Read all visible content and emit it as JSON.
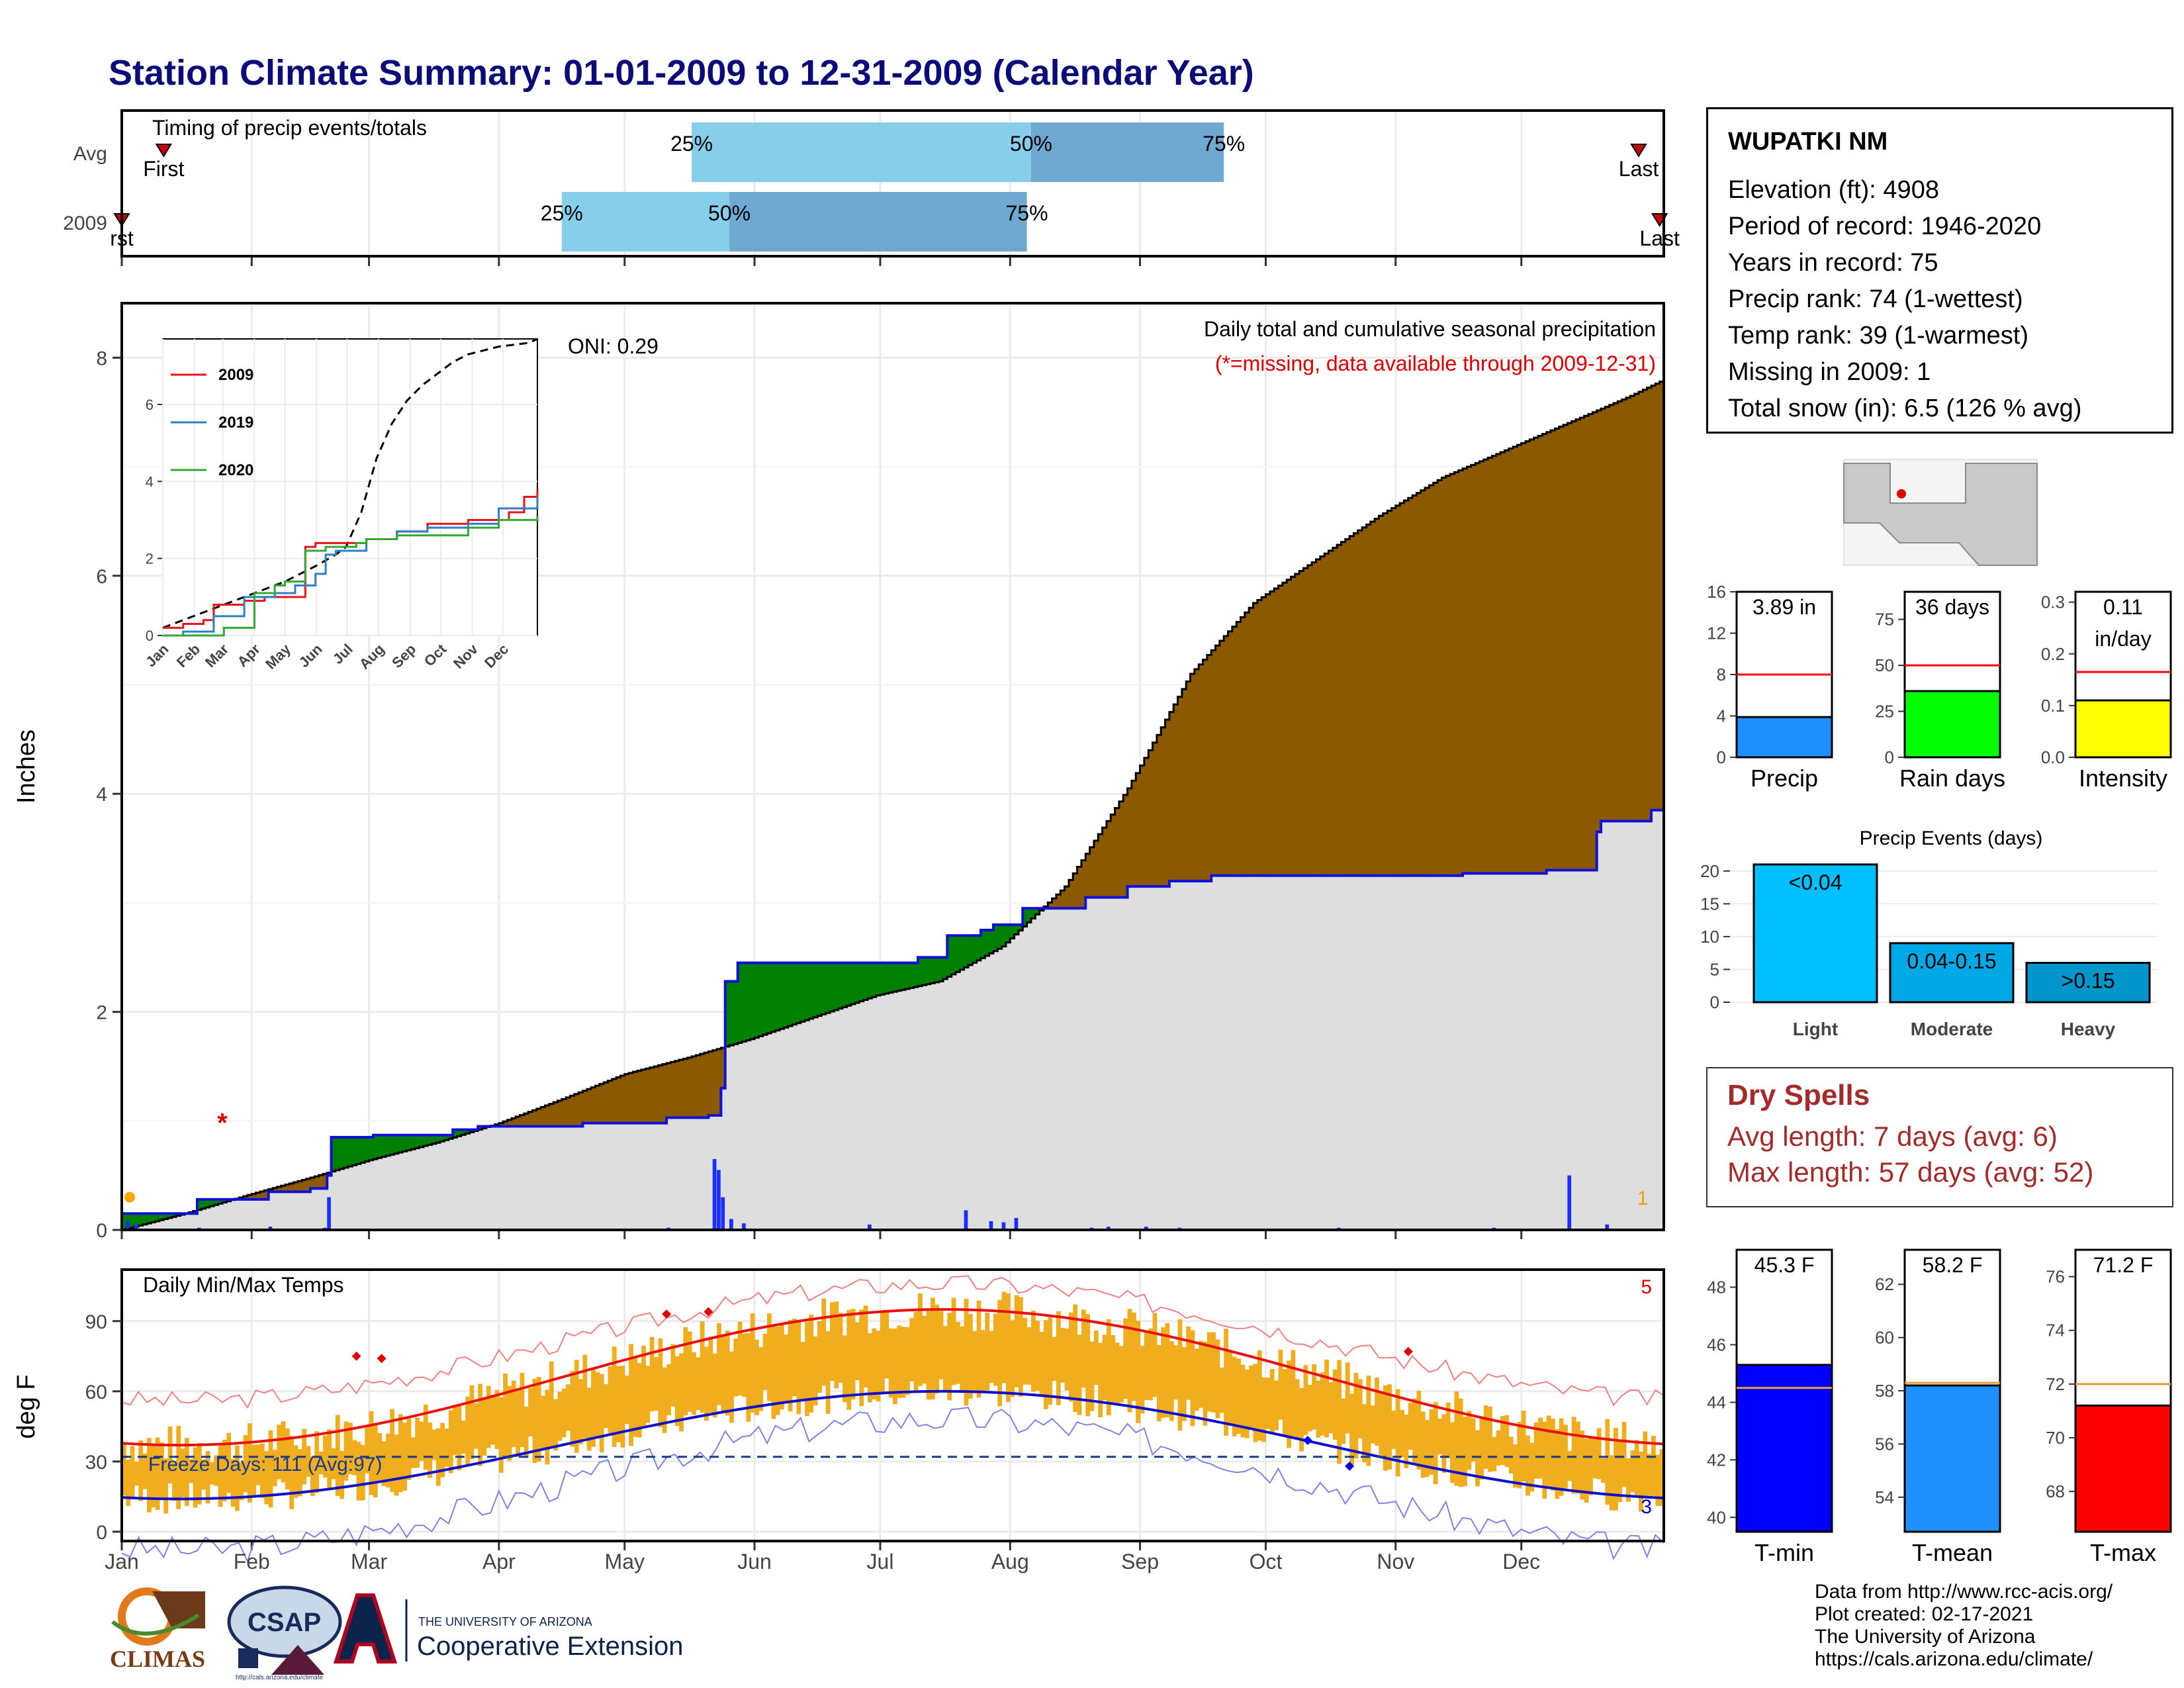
{
  "title": "Station Climate Summary: 01-01-2009 to 12-31-2009 (Calendar Year)",
  "months": [
    "Jan",
    "Feb",
    "Mar",
    "Apr",
    "May",
    "Jun",
    "Jul",
    "Aug",
    "Sep",
    "Oct",
    "Nov",
    "Dec"
  ],
  "timing": {
    "label": "Timing of precip events/totals",
    "rows": [
      {
        "name": "Avg",
        "first_day": 10,
        "p25": 136,
        "p50": 217,
        "p75": 263,
        "last_day": 362,
        "first_label": "First",
        "last_label": "Last",
        "p25_label": "25%",
        "p50_label": "50%",
        "p75_label": "75%"
      },
      {
        "name": "2009",
        "first_day": 0,
        "p25": 105,
        "p50": 145,
        "p75": 216,
        "last_day": 367,
        "first_label": "rst",
        "last_label": "Last",
        "p25_label": "25%",
        "p50_label": "50%",
        "p75_label": "75%"
      }
    ],
    "colors": {
      "light": "#87ceeb",
      "dark": "#6fa8d0",
      "marker": "#cc0000"
    }
  },
  "precip": {
    "title": "Daily total and cumulative seasonal precipitation",
    "subtitle": "(*=missing, data available through 2009-12-31)",
    "ylabel": "Inches",
    "ylim": [
      0,
      8.5
    ],
    "yticks": [
      0,
      2,
      4,
      6,
      8
    ],
    "oni_label": "ONI: 0.29",
    "count_label": "1",
    "avg_cumulative": {
      "days": [
        0,
        15,
        30,
        45,
        60,
        75,
        90,
        105,
        120,
        135,
        150,
        165,
        180,
        195,
        210,
        225,
        240,
        255,
        270,
        285,
        300,
        315,
        330,
        345,
        360,
        368
      ],
      "values": [
        0.0,
        0.15,
        0.32,
        0.48,
        0.65,
        0.8,
        0.98,
        1.2,
        1.43,
        1.58,
        1.75,
        1.95,
        2.15,
        2.28,
        2.6,
        3.15,
        4.05,
        5.1,
        5.75,
        6.15,
        6.55,
        6.9,
        7.15,
        7.4,
        7.65,
        7.8
      ]
    },
    "obs_cumulative": {
      "days": [
        0,
        18,
        35,
        45,
        49,
        50,
        60,
        79,
        85,
        90,
        110,
        130,
        140,
        143,
        144,
        147,
        155,
        165,
        180,
        190,
        197,
        205,
        208,
        215,
        223,
        230,
        240,
        250,
        260,
        275,
        290,
        320,
        340,
        352,
        353,
        365,
        368
      ],
      "values": [
        0.15,
        0.28,
        0.35,
        0.38,
        0.5,
        0.85,
        0.87,
        0.92,
        0.95,
        0.95,
        0.98,
        1.03,
        1.05,
        1.3,
        2.28,
        2.45,
        2.45,
        2.45,
        2.45,
        2.5,
        2.7,
        2.75,
        2.8,
        2.95,
        2.95,
        3.05,
        3.15,
        3.2,
        3.25,
        3.25,
        3.25,
        3.27,
        3.3,
        3.65,
        3.75,
        3.85,
        3.88
      ]
    },
    "daily_bars": [
      [
        1,
        0.08
      ],
      [
        3,
        0.05
      ],
      [
        18,
        0.02
      ],
      [
        35,
        0.03
      ],
      [
        48,
        0.02
      ],
      [
        49,
        0.3
      ],
      [
        70,
        0.01
      ],
      [
        85,
        0.01
      ],
      [
        95,
        0.01
      ],
      [
        110,
        0.01
      ],
      [
        130,
        0.02
      ],
      [
        141,
        0.65
      ],
      [
        142,
        0.55
      ],
      [
        143,
        0.3
      ],
      [
        145,
        0.1
      ],
      [
        148,
        0.06
      ],
      [
        178,
        0.05
      ],
      [
        201,
        0.18
      ],
      [
        207,
        0.08
      ],
      [
        210,
        0.07
      ],
      [
        213,
        0.11
      ],
      [
        231,
        0.02
      ],
      [
        235,
        0.03
      ],
      [
        244,
        0.03
      ],
      [
        252,
        0.02
      ],
      [
        290,
        0.02
      ],
      [
        327,
        0.02
      ],
      [
        345,
        0.5
      ],
      [
        354,
        0.05
      ]
    ],
    "missing_day": 24,
    "missing_value": 1.0,
    "colors": {
      "avg_fill": "#8b5a00",
      "obs_fill": "#dedede",
      "surplus": "#008000",
      "line": "#1010dd",
      "bars": "#1a2eff"
    }
  },
  "inset": {
    "legend": [
      {
        "name": "2009",
        "color": "#e8141c"
      },
      {
        "name": "2019",
        "color": "#2e7fc4"
      },
      {
        "name": "2020",
        "color": "#33a833"
      }
    ],
    "yticks": [
      0,
      2,
      4,
      6
    ],
    "ylim": [
      0,
      7.7
    ],
    "months": [
      "Jan",
      "Feb",
      "Mar",
      "Apr",
      "May",
      "Jun",
      "Jul",
      "Aug",
      "Sep",
      "Oct",
      "Nov",
      "Dec"
    ],
    "avg": {
      "days": [
        0,
        30,
        60,
        90,
        120,
        150,
        170,
        180,
        195,
        210,
        225,
        240,
        255,
        270,
        285,
        300,
        330,
        360,
        368
      ],
      "values": [
        0.2,
        0.5,
        0.8,
        1.1,
        1.4,
        1.8,
        2.1,
        2.3,
        3.2,
        4.6,
        5.5,
        6.1,
        6.5,
        6.8,
        7.1,
        7.3,
        7.5,
        7.6,
        7.7
      ]
    },
    "series": [
      {
        "name": "2009",
        "days": [
          0,
          20,
          40,
          50,
          80,
          100,
          120,
          140,
          150,
          170,
          200,
          230,
          260,
          300,
          340,
          355,
          368
        ],
        "values": [
          0.2,
          0.3,
          0.4,
          0.8,
          0.9,
          1.0,
          1.0,
          2.3,
          2.4,
          2.4,
          2.5,
          2.7,
          2.9,
          3.0,
          3.2,
          3.6,
          3.8
        ]
      },
      {
        "name": "2019",
        "days": [
          0,
          20,
          50,
          80,
          110,
          130,
          150,
          160,
          170,
          200,
          230,
          260,
          300,
          330,
          368
        ],
        "values": [
          0,
          0.1,
          0.5,
          1.0,
          1.1,
          1.3,
          1.6,
          2.1,
          2.2,
          2.5,
          2.7,
          2.8,
          2.9,
          3.3,
          3.6
        ]
      },
      {
        "name": "2020",
        "days": [
          0,
          30,
          60,
          90,
          110,
          120,
          140,
          160,
          190,
          200,
          230,
          260,
          300,
          330,
          368
        ],
        "values": [
          0,
          0,
          0.2,
          1.1,
          1.3,
          1.4,
          2.2,
          2.3,
          2.4,
          2.5,
          2.6,
          2.6,
          2.8,
          3.0,
          3.1
        ]
      }
    ]
  },
  "temps": {
    "title": "Daily Min/Max Temps",
    "ylabel": "deg F",
    "ylim": [
      -4,
      112
    ],
    "yticks": [
      0,
      30,
      60,
      90
    ],
    "freeze_label": "Freeze Days: 111 (Avg:97)",
    "freeze_line": 32,
    "record_high_count": "5",
    "record_low_count": "3",
    "colors": {
      "bars": "#f0ae1e",
      "avgmax": "#e81010",
      "avgmin": "#1010cc",
      "recmax": "#f28080",
      "recmin": "#8080e8"
    }
  },
  "station": {
    "name": "WUPATKI NM",
    "lines": [
      "Elevation (ft): 4908",
      "Period of record: 1946-2020",
      "Years in record: 75",
      "Precip rank: 74 (1-wettest)",
      "Temp rank: 39 (1-warmest)",
      "Missing in 2009: 1",
      "Total snow (in): 6.5 (126 % avg)"
    ]
  },
  "mini_precip": [
    {
      "label": "Precip",
      "value_label": "3.89 in",
      "value": 3.89,
      "avg": 8,
      "ylim": [
        0,
        16
      ],
      "yticks": [
        "0",
        "4",
        "8",
        "12",
        "16"
      ],
      "color": "#1e90ff"
    },
    {
      "label": "Rain days",
      "value_label": "36 days",
      "value": 36,
      "avg": 50,
      "ylim": [
        0,
        90
      ],
      "yticks": [
        "0",
        "25",
        "50",
        "75"
      ],
      "ytick_values": [
        0,
        25,
        50,
        75
      ],
      "color": "#00ff00"
    },
    {
      "label": "Intensity",
      "value_label": "0.11",
      "value_label2": "in/day",
      "value": 0.11,
      "avg": 0.165,
      "ylim": [
        0,
        0.32
      ],
      "yticks": [
        "0.0",
        "0.1",
        "0.2",
        "0.3"
      ],
      "ytick_values": [
        0,
        0.1,
        0.2,
        0.3
      ],
      "color": "#ffff00"
    }
  ],
  "precip_events": {
    "title": "Precip Events (days)",
    "categories": [
      "Light",
      "Moderate",
      "Heavy"
    ],
    "bar_labels": [
      "<0.04",
      "0.04-0.15",
      ">0.15"
    ],
    "values": [
      21,
      9,
      6
    ],
    "yticks": [
      0,
      5,
      10,
      15,
      20
    ],
    "ylim": [
      0,
      22
    ],
    "colors": [
      "#00bfff",
      "#00a8e6",
      "#0096cc"
    ]
  },
  "dry_spells": {
    "title": "Dry Spells",
    "lines": [
      "Avg length: 7 days (avg: 6)",
      "Max length: 57 days (avg: 52)"
    ]
  },
  "mini_temps": [
    {
      "label": "T-min",
      "value_label": "45.3 F",
      "value": 45.3,
      "avg": 44.5,
      "ylim": [
        39.5,
        49.3
      ],
      "yticks": [
        "40",
        "42",
        "44",
        "46",
        "48"
      ],
      "ytick_values": [
        40,
        42,
        44,
        46,
        48
      ],
      "color": "#0000ff"
    },
    {
      "label": "T-mean",
      "value_label": "58.2 F",
      "value": 58.2,
      "avg": 58.3,
      "ylim": [
        52.7,
        63.3
      ],
      "yticks": [
        "54",
        "56",
        "58",
        "60",
        "62"
      ],
      "ytick_values": [
        54,
        56,
        58,
        60,
        62
      ],
      "color": "#1e90ff"
    },
    {
      "label": "T-max",
      "value_label": "71.2 F",
      "value": 71.2,
      "avg": 72.0,
      "ylim": [
        66.5,
        77.0
      ],
      "yticks": [
        "68",
        "70",
        "72",
        "74",
        "76"
      ],
      "ytick_values": [
        68,
        70,
        72,
        74,
        76
      ],
      "color": "#ff0000"
    }
  ],
  "credits": [
    "Data from http://www.rcc-acis.org/",
    "Plot created: 02-17-2021",
    "The University of Arizona",
    "https://cals.arizona.edu/climate/"
  ],
  "logos": {
    "climas": "CLIMAS",
    "csap": "CSAP",
    "csap_url": "http://cals.arizona.edu/climate",
    "ua_small": "THE UNIVERSITY OF ARIZONA",
    "ua_big": "Cooperative Extension"
  }
}
